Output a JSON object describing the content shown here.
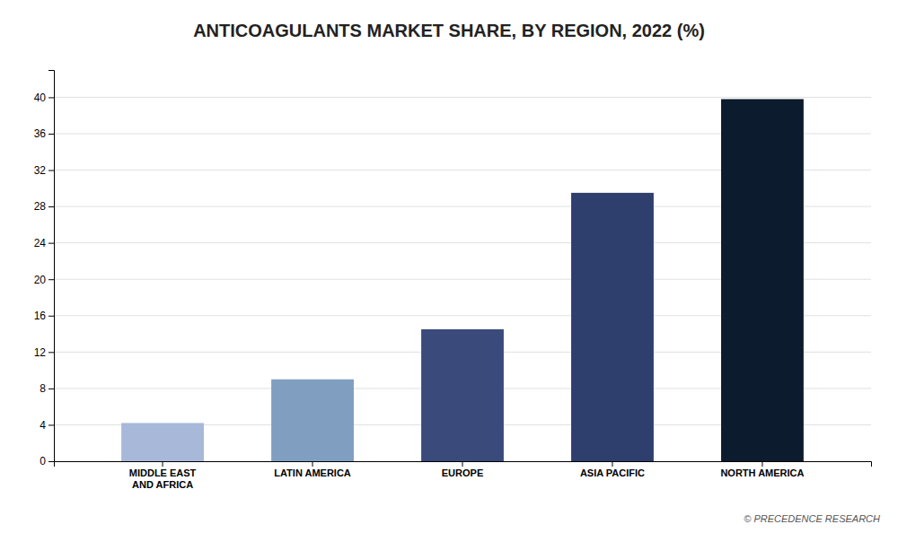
{
  "chart_data": {
    "type": "bar",
    "title": "ANTICOAGULANTS MARKET SHARE, BY REGION, 2022 (%)",
    "categories": [
      "MIDDLE EAST\nAND AFRICA",
      "LATIN AMERICA",
      "EUROPE",
      "ASIA PACIFIC",
      "NORTH AMERICA"
    ],
    "values": [
      4.2,
      9.0,
      14.5,
      29.5,
      39.8
    ],
    "colors": [
      "#a8b8d8",
      "#7f9ec0",
      "#3a4a7a",
      "#2e3f6e",
      "#0d1b2e"
    ],
    "ylim": [
      0,
      43
    ],
    "yticks": [
      0,
      4,
      8,
      12,
      16,
      20,
      24,
      28,
      32,
      36,
      40
    ],
    "grid": true,
    "annotation": "© PRECEDENCE RESEARCH"
  }
}
